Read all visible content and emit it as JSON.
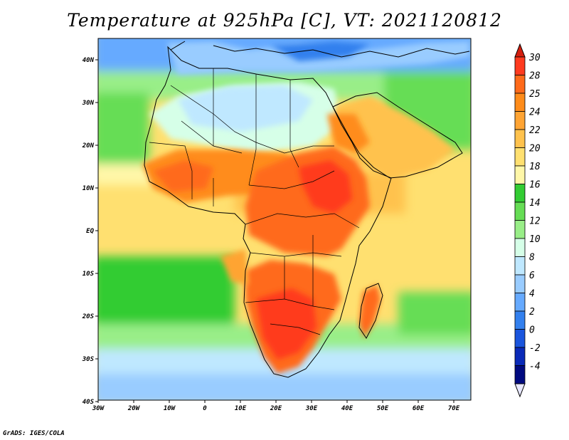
{
  "title": "Temperature at 925hPa [C], VT: 2021120812",
  "credit": "GrADS: IGES/COLA",
  "map": {
    "region": "Africa",
    "variable": "Temperature at 925hPa",
    "units": "C",
    "lon_labels": [
      "30W",
      "20W",
      "10W",
      "0",
      "10E",
      "20E",
      "30E",
      "40E",
      "50E",
      "60E",
      "70E"
    ],
    "lat_labels": [
      "40N",
      "30N",
      "20N",
      "10N",
      "EQ",
      "10S",
      "20S",
      "30S",
      "40S"
    ]
  },
  "colorbar": {
    "labels": [
      "30",
      "28",
      "25",
      "24",
      "22",
      "20",
      "18",
      "16",
      "14",
      "12",
      "10",
      "8",
      "6",
      "4",
      "2",
      "0",
      "-2",
      "-4"
    ],
    "colors": [
      "#ff3b1f",
      "#ff6a1a",
      "#ff8c1a",
      "#ffa433",
      "#ffc24d",
      "#ffe070",
      "#fff7a8",
      "#33cc33",
      "#66dd55",
      "#99ee88",
      "#d6ffe8",
      "#bfe8ff",
      "#99ccff",
      "#66aaff",
      "#3380ee",
      "#1a55dd",
      "#0a2ab8",
      "#000a80"
    ],
    "top_color": "#d41f0f",
    "bottom_color": "#e8e8ff"
  }
}
